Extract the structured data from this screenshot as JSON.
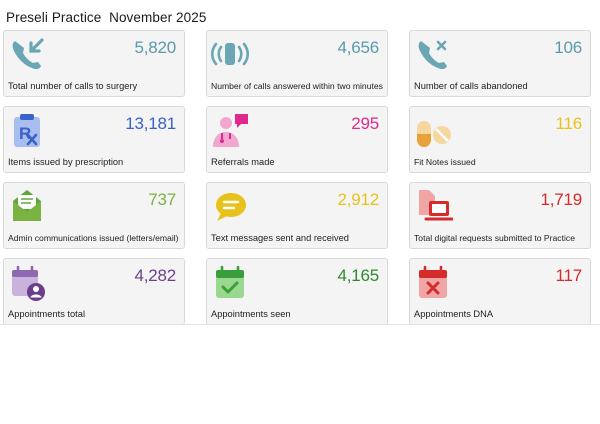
{
  "header": {
    "practice": "Preseli Practice",
    "period": "November 2025"
  },
  "cards": [
    {
      "label": "Total number of calls to surgery",
      "value": "5,820",
      "color": "#5b9aa8",
      "icon": "phone-incoming-icon"
    },
    {
      "label": "Number of calls answered within two minutes",
      "value": "4,656",
      "color": "#5b9aa8",
      "icon": "phone-ringing-icon"
    },
    {
      "label": "Number of calls abandoned",
      "value": "106",
      "color": "#5b9aa8",
      "icon": "phone-missed-icon"
    },
    {
      "label": "Items issued by prescription",
      "value": "13,181",
      "color": "#3a63c8",
      "icon": "prescription-icon"
    },
    {
      "label": "Referrals made",
      "value": "295",
      "color": "#e0298f",
      "icon": "doctor-icon"
    },
    {
      "label": "Fit Notes issued",
      "value": "116",
      "color": "#e8c21a",
      "icon": "pills-icon"
    },
    {
      "label": "Admin communications issued (letters/email)",
      "value": "737",
      "color": "#7bb342",
      "icon": "envelope-icon"
    },
    {
      "label": "Text messages sent and received",
      "value": "2,912",
      "color": "#e8c21a",
      "icon": "chat-bubble-icon"
    },
    {
      "label": "Total digital requests submitted to Practice",
      "value": "1,719",
      "color": "#d42b2b",
      "icon": "computer-icon"
    },
    {
      "label": "Appointments total",
      "value": "4,282",
      "color": "#6b3e8c",
      "icon": "calendar-user-icon"
    },
    {
      "label": "Appointments seen",
      "value": "4,165",
      "color": "#3a9e3a",
      "icon": "calendar-check-icon"
    },
    {
      "label": "Appointments DNA",
      "value": "117",
      "color": "#d42b2b",
      "icon": "calendar-cross-icon"
    }
  ]
}
